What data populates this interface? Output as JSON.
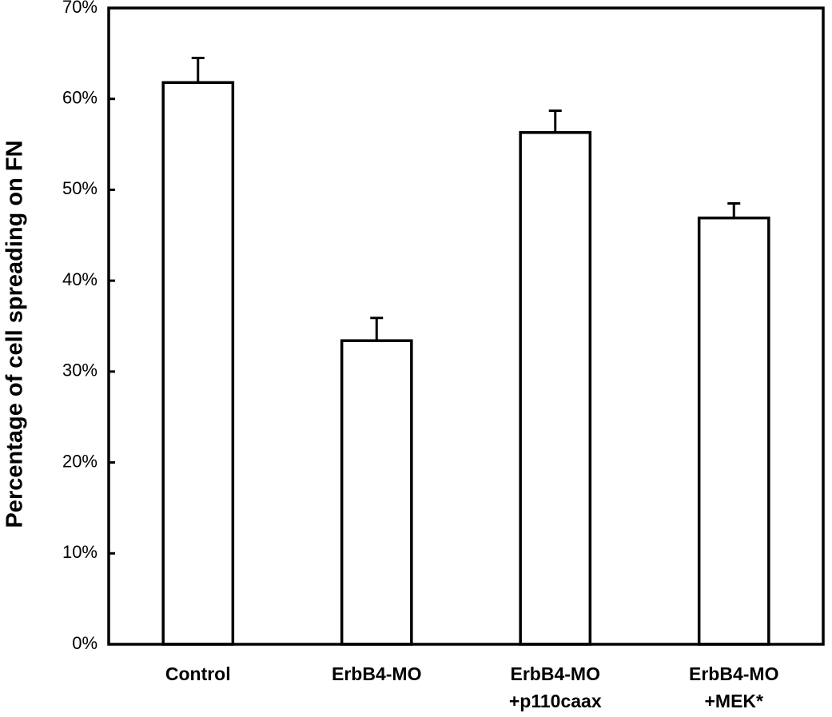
{
  "chart_data": {
    "type": "bar",
    "y_label": "Percentage of cell spreading on FN",
    "categories": [
      "Control",
      "ErbB4-MO",
      "ErbB4-MO\n+p110caax",
      "ErbB4-MO\n+MEK*"
    ],
    "values": [
      61.8,
      33.4,
      56.3,
      46.9
    ],
    "errors": [
      2.7,
      2.5,
      2.4,
      1.6
    ],
    "color": "#ffffff",
    "ylim": [
      0,
      70
    ],
    "yticks": [
      {
        "value": 0,
        "label": "0%"
      },
      {
        "value": 10,
        "label": "10%"
      },
      {
        "value": 20,
        "label": "20%"
      },
      {
        "value": 30,
        "label": "30%"
      },
      {
        "value": 40,
        "label": "40%"
      },
      {
        "value": 50,
        "label": "50%"
      },
      {
        "value": 60,
        "label": "60%"
      },
      {
        "value": 70,
        "label": "70%"
      }
    ],
    "grid": false
  }
}
